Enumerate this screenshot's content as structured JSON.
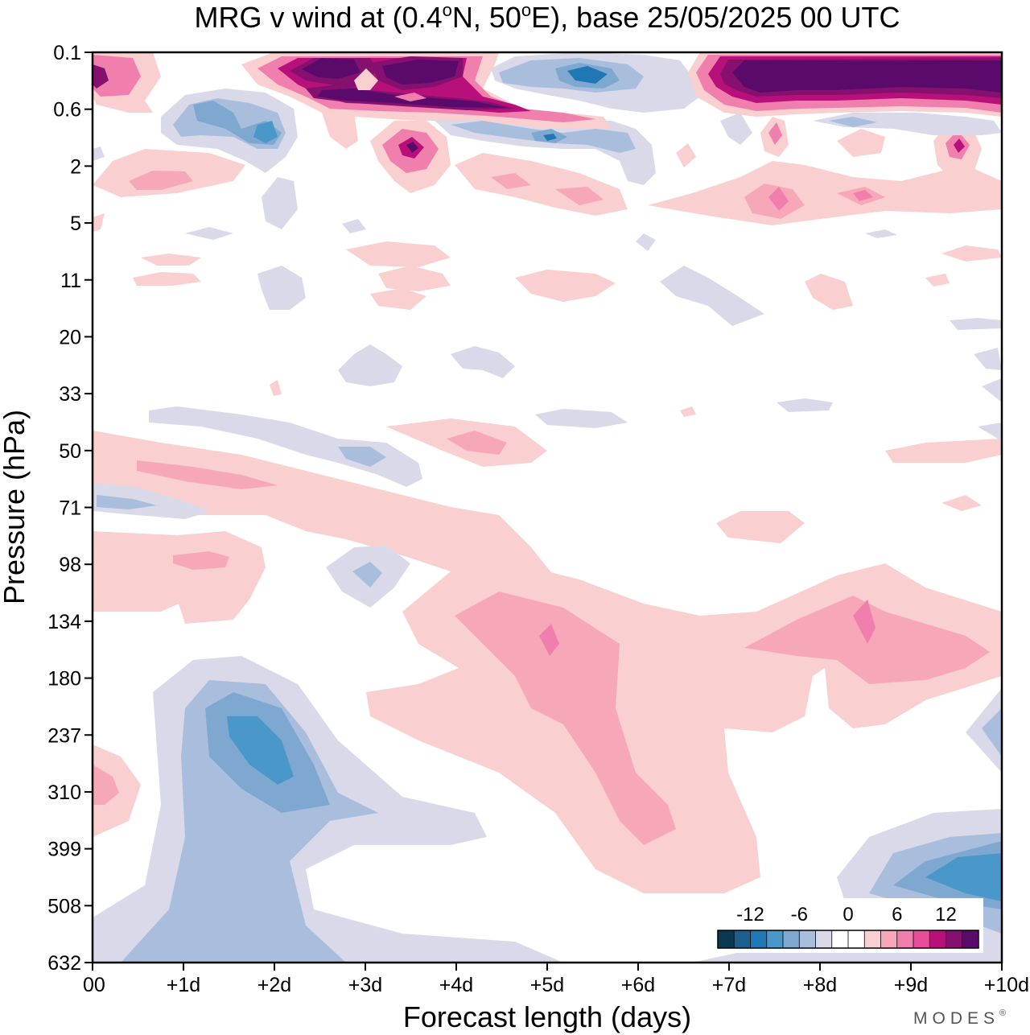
{
  "chart_data": {
    "type": "heatmap",
    "title_parts": {
      "prefix": "MRG v wind at (0.4",
      "deg1": "o",
      "mid": "N, 50",
      "deg2": "o",
      "suffix": "E),  base 25/05/2025  00 UTC"
    },
    "xlabel": "Forecast length (days)",
    "ylabel": "Pressure (hPa)",
    "x_ticks": [
      "00",
      "+1d",
      "+2d",
      "+3d",
      "+4d",
      "+5d",
      "+6d",
      "+7d",
      "+8d",
      "+9d",
      "+10d"
    ],
    "x_range": [
      0,
      10
    ],
    "y_ticks": [
      "0.1",
      "0.6",
      "2",
      "5",
      "11",
      "20",
      "33",
      "50",
      "71",
      "98",
      "134",
      "180",
      "237",
      "310",
      "399",
      "508",
      "632"
    ],
    "y_range_top_to_bottom": [
      "0.1",
      "632"
    ],
    "colorbar": {
      "labels": [
        "-12",
        "-6",
        "0",
        "6",
        "12"
      ],
      "label_values": [
        -12,
        -6,
        0,
        6,
        12
      ],
      "levels": [
        -16,
        -14,
        -12,
        -10,
        -8,
        -6,
        -4,
        -2,
        0,
        2,
        4,
        6,
        8,
        10,
        12,
        14,
        16
      ],
      "colors": [
        "#0b3954",
        "#1b5f8e",
        "#1f78b4",
        "#4a98c9",
        "#7fa8d1",
        "#a9bedc",
        "#d9d9ea",
        "#ffffff",
        "#ffffff",
        "#f9cfd0",
        "#f7a8b8",
        "#f07fae",
        "#e84d9a",
        "#b8107a",
        "#85106e",
        "#5a0a6b"
      ]
    },
    "contour_regions": [
      {
        "level": 2,
        "cells": [
          [
            0.0,
            180
          ],
          [
            0.0,
            237
          ],
          [
            0.0,
            310
          ],
          [
            0.3,
            237
          ],
          [
            0.3,
            310
          ],
          [
            0.3,
            399
          ]
        ]
      },
      {
        "level": 6,
        "cells": [
          [
            0.3,
            310
          ]
        ]
      },
      {
        "level": -2,
        "cells": [
          [
            1.0,
            237
          ],
          [
            1.5,
            180
          ],
          [
            2.0,
            180
          ],
          [
            2.5,
            237
          ],
          [
            3.0,
            310
          ],
          [
            4.0,
            399
          ],
          [
            1.5,
            508
          ],
          [
            1.0,
            399
          ],
          [
            8.5,
            399
          ],
          [
            9.5,
            399
          ],
          [
            10.0,
            508
          ]
        ]
      },
      {
        "level": -4,
        "cells": [
          [
            1.5,
            237
          ],
          [
            2.0,
            237
          ],
          [
            2.0,
            310
          ],
          [
            1.5,
            310
          ],
          [
            9.0,
            508
          ],
          [
            9.7,
            508
          ]
        ]
      },
      {
        "level": -6,
        "cells": [
          [
            1.5,
            237
          ],
          [
            2.0,
            310
          ],
          [
            9.5,
            508
          ]
        ]
      },
      {
        "level": -8,
        "cells": [
          [
            2.0,
            237
          ],
          [
            9.8,
            508
          ]
        ]
      },
      {
        "level": 2,
        "cells": [
          [
            3.5,
            134
          ],
          [
            4.0,
            134
          ],
          [
            4.5,
            134
          ],
          [
            5.0,
            134
          ],
          [
            5.5,
            180
          ],
          [
            6.0,
            180
          ],
          [
            6.5,
            134
          ],
          [
            7.5,
            134
          ],
          [
            8.0,
            134
          ],
          [
            9.0,
            134
          ],
          [
            9.8,
            134
          ],
          [
            5.5,
            237
          ],
          [
            6.0,
            310
          ],
          [
            7.0,
            399
          ],
          [
            8.0,
            180
          ]
        ]
      },
      {
        "level": 4,
        "cells": [
          [
            4.5,
            134
          ],
          [
            5.0,
            134
          ],
          [
            5.5,
            180
          ],
          [
            6.0,
            237
          ],
          [
            6.0,
            310
          ],
          [
            7.5,
            134
          ],
          [
            8.5,
            134
          ],
          [
            9.5,
            134
          ]
        ]
      },
      {
        "level": 6,
        "cells": [
          [
            5.0,
            134
          ],
          [
            8.5,
            134
          ]
        ]
      },
      {
        "level": 2,
        "cells": [
          [
            0.0,
            50
          ],
          [
            1.0,
            50
          ],
          [
            2.0,
            50
          ],
          [
            3.0,
            71
          ],
          [
            0.5,
            98
          ],
          [
            1.5,
            98
          ],
          [
            2.0,
            98
          ],
          [
            6.0,
            71
          ],
          [
            7.0,
            71
          ],
          [
            8.0,
            71
          ]
        ]
      },
      {
        "level": 4,
        "cells": [
          [
            0.5,
            50
          ],
          [
            1.5,
            50
          ],
          [
            1.0,
            98
          ],
          [
            4.0,
            50
          ]
        ]
      },
      {
        "level": -2,
        "cells": [
          [
            0.0,
            71
          ],
          [
            1.0,
            71
          ],
          [
            3.0,
            98
          ],
          [
            1.0,
            33
          ],
          [
            2.0,
            33
          ],
          [
            3.0,
            50
          ],
          [
            5.0,
            33
          ]
        ]
      },
      {
        "level": -4,
        "cells": [
          [
            0.5,
            71
          ],
          [
            3.0,
            98
          ],
          [
            3.0,
            50
          ]
        ]
      },
      {
        "level": 2,
        "cells": [
          [
            0.5,
            2
          ],
          [
            1.5,
            2
          ],
          [
            4.5,
            2
          ],
          [
            5.5,
            2
          ],
          [
            7.5,
            2
          ],
          [
            8.5,
            2
          ],
          [
            9.5,
            2
          ],
          [
            3.5,
            11
          ],
          [
            5.5,
            11
          ],
          [
            4.0,
            20
          ],
          [
            1.0,
            11
          ],
          [
            8.0,
            11
          ]
        ]
      },
      {
        "level": 4,
        "cells": [
          [
            3.5,
            1.0
          ],
          [
            7.5,
            2
          ],
          [
            8.5,
            2
          ],
          [
            9.5,
            1.0
          ],
          [
            5.0,
            2
          ]
        ]
      },
      {
        "level": 8,
        "cells": [
          [
            3.5,
            1.0
          ],
          [
            7.5,
            1.0
          ],
          [
            9.5,
            1.0
          ]
        ]
      },
      {
        "level": -2,
        "cells": [
          [
            1.5,
            0.6
          ],
          [
            2.5,
            0.6
          ],
          [
            4.0,
            1.0
          ],
          [
            5.0,
            1.0
          ],
          [
            6.0,
            1.0
          ],
          [
            6.5,
            0.3
          ],
          [
            8.5,
            1.0
          ],
          [
            2.0,
            5
          ],
          [
            1.0,
            5
          ],
          [
            5.0,
            20
          ],
          [
            7.0,
            11
          ]
        ]
      },
      {
        "level": -4,
        "cells": [
          [
            1.5,
            0.6
          ],
          [
            2.0,
            1.0
          ],
          [
            5.5,
            0.3
          ],
          [
            4.5,
            1.0
          ],
          [
            5.0,
            1.0
          ]
        ]
      },
      {
        "level": -6,
        "cells": [
          [
            2.0,
            1.0
          ],
          [
            5.5,
            0.3
          ]
        ]
      },
      {
        "level": 6,
        "cells": [
          [
            0.0,
            0.3
          ],
          [
            0.5,
            0.3
          ],
          [
            2.0,
            0.3
          ],
          [
            3.0,
            0.3
          ],
          [
            4.0,
            0.3
          ],
          [
            7.0,
            0.3
          ],
          [
            8.0,
            0.3
          ],
          [
            9.0,
            0.3
          ],
          [
            10.0,
            0.3
          ]
        ]
      },
      {
        "level": 12,
        "cells": [
          [
            2.5,
            0.2
          ],
          [
            3.5,
            0.2
          ],
          [
            3.0,
            0.6
          ],
          [
            4.0,
            0.6
          ],
          [
            7.5,
            0.2
          ],
          [
            8.5,
            0.2
          ],
          [
            9.5,
            0.2
          ],
          [
            0.0,
            0.3
          ]
        ]
      },
      {
        "level": 16,
        "cells": [
          [
            2.5,
            0.15
          ],
          [
            3.5,
            0.25
          ],
          [
            3.5,
            0.6
          ],
          [
            7.5,
            0.25
          ],
          [
            8.5,
            0.25
          ],
          [
            9.5,
            0.25
          ]
        ]
      }
    ]
  },
  "brand": "MODES",
  "brand_mark": "®"
}
